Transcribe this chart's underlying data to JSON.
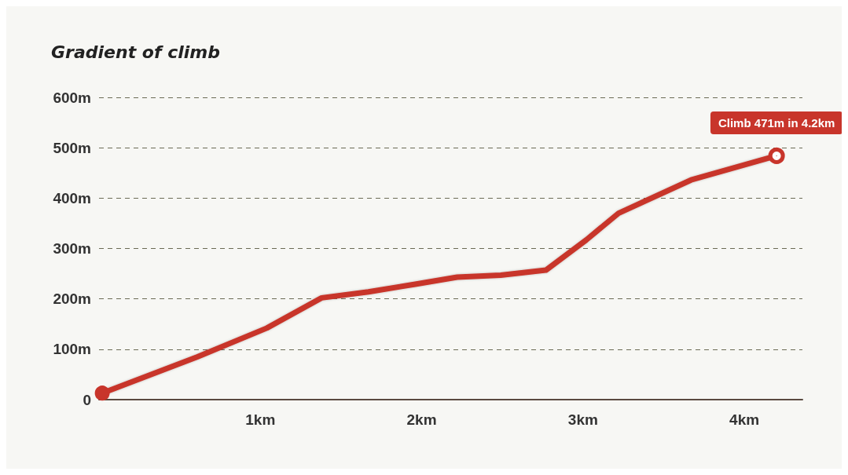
{
  "chart_data": {
    "type": "line",
    "title": "Gradient of climb",
    "x": [
      0.02,
      0.61,
      1.04,
      1.38,
      1.67,
      1.96,
      2.22,
      2.49,
      2.77,
      3.02,
      3.22,
      3.67,
      4.2
    ],
    "series": [
      {
        "color": "#c8352b",
        "values": [
          13,
          85,
          142,
          202,
          214,
          229,
          243,
          247,
          257,
          317,
          370,
          436,
          484
        ]
      }
    ],
    "xlim": [
      0,
      4.36
    ],
    "xticks": [
      {
        "value": 1,
        "label": "1km"
      },
      {
        "value": 2,
        "label": "2km"
      },
      {
        "value": 3,
        "label": "3km"
      },
      {
        "value": 4,
        "label": "4km"
      }
    ],
    "ylim": [
      0,
      600
    ],
    "yticks": [
      0,
      {
        "value": 100,
        "label": "100m"
      },
      {
        "value": 200,
        "label": "200m"
      },
      {
        "value": 300,
        "label": "300m"
      },
      {
        "value": 400,
        "label": "400m"
      },
      {
        "value": 500,
        "label": "500m"
      },
      {
        "value": 600,
        "label": "600m"
      }
    ],
    "grid": "y",
    "line_style": "solid",
    "annotations": [
      {
        "text": "Climb 471m in 4.2km",
        "x": 4.2,
        "y": 484
      }
    ]
  }
}
